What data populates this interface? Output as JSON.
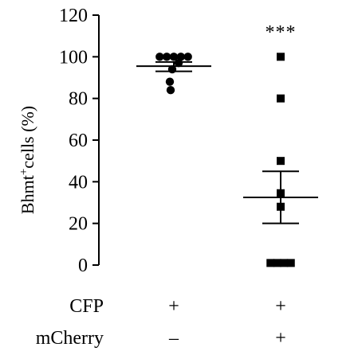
{
  "chart_data": {
    "type": "scatter",
    "ylabel": {
      "prefix": "Bhmt",
      "superscript": "+",
      "suffix": "cells (%)"
    },
    "ylim": [
      0,
      120
    ],
    "yticks": [
      0,
      20,
      40,
      60,
      80,
      100,
      120
    ],
    "groups": [
      {
        "marker": "circle",
        "values": [
          100,
          100,
          100,
          100,
          100,
          97,
          94,
          88,
          84
        ],
        "mean": 95.5,
        "sem_low": 93,
        "sem_high": 97.5
      },
      {
        "marker": "square",
        "values": [
          100,
          80,
          50,
          34.5,
          28,
          1,
          1,
          1,
          1
        ],
        "mean": 32.5,
        "sem_low": 20,
        "sem_high": 45
      }
    ],
    "significance": [
      {
        "group": 1,
        "text": "***"
      }
    ],
    "conditions": [
      {
        "label": "CFP",
        "values": [
          "+",
          "+"
        ]
      },
      {
        "label": "mCherry",
        "values": [
          "–",
          "+"
        ]
      }
    ],
    "grid": false,
    "legend": "none"
  },
  "colors": {
    "ink": "#000000",
    "background": "#ffffff"
  }
}
